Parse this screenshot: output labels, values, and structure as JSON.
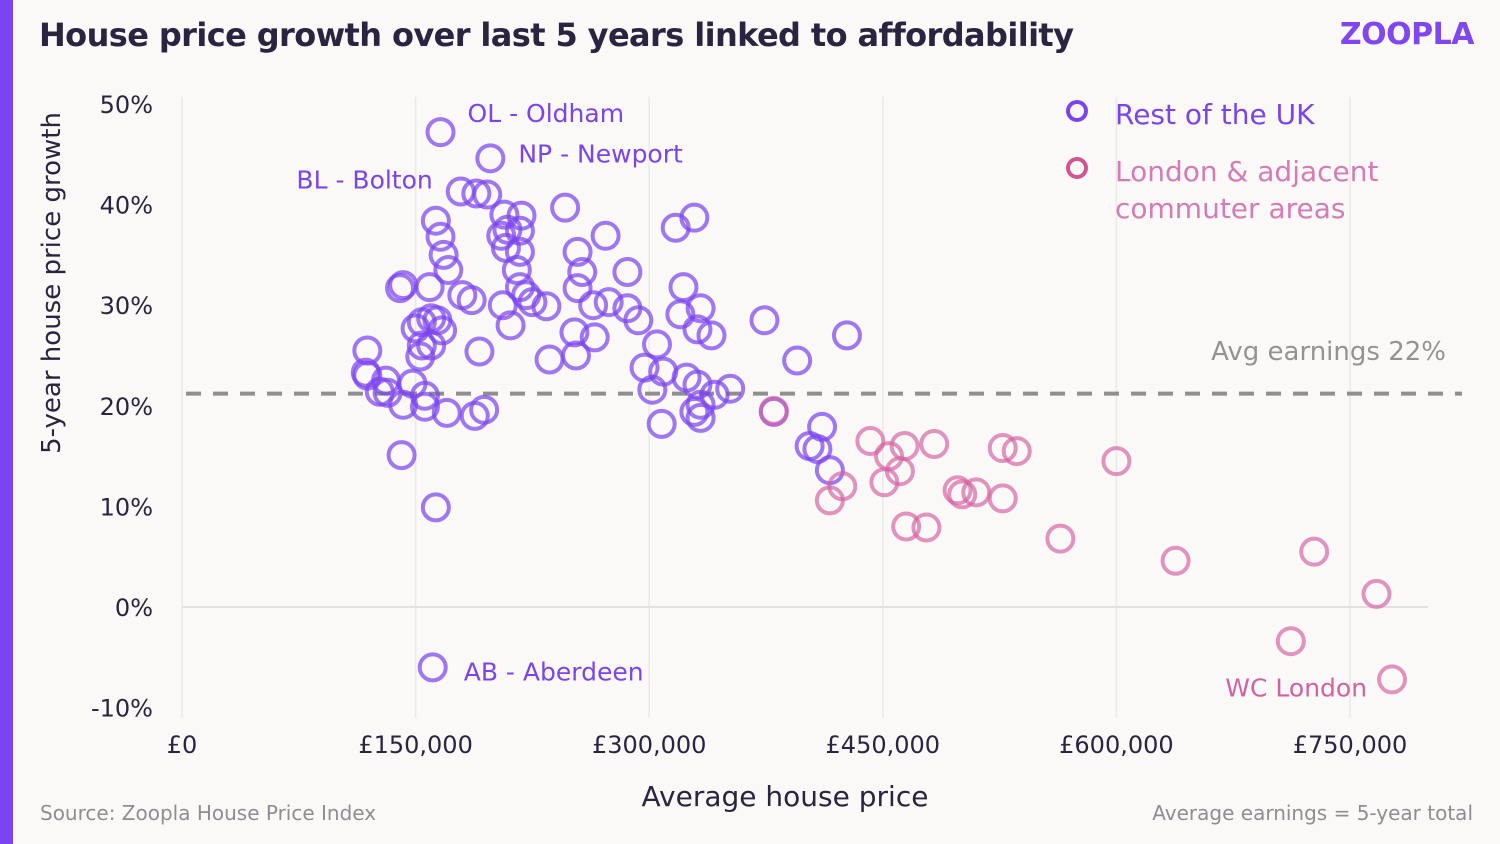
{
  "header": {
    "title": "House price growth over last 5 years linked to affordability",
    "logo": "zoopla"
  },
  "colors": {
    "brand": "#7b44f0",
    "rest_of_uk": "#7b44f0",
    "london": "#d462a0",
    "avg_line": "#8f8f8f",
    "text_dark": "#2a2440",
    "text_muted": "#8f8c94"
  },
  "footer": {
    "source": "Source: Zoopla House Price Index",
    "note": "Average earnings = 5-year total"
  },
  "chart_data": {
    "type": "scatter",
    "title": "House price growth over last 5 years linked to affordability",
    "xlabel": "Average house price",
    "ylabel": "5-year house price growth",
    "xlim": [
      0,
      800000
    ],
    "ylim": [
      -10,
      50
    ],
    "x_ticks": [
      0,
      150000,
      300000,
      450000,
      600000,
      750000
    ],
    "x_tick_labels": [
      "£0",
      "£150,000",
      "£300,000",
      "£450,000",
      "£600,000",
      "£750,000"
    ],
    "y_ticks": [
      -10,
      0,
      10,
      20,
      30,
      40,
      50
    ],
    "y_tick_labels": [
      "-10%",
      "0%",
      "10%",
      "20%",
      "30%",
      "40%",
      "50%"
    ],
    "grid": "vertical lines at x ticks, horizontal line at 0%",
    "legend_position": "top-right",
    "reference_line": {
      "label": "Avg earnings 22%",
      "value": 22,
      "style": "dashed"
    },
    "series": [
      {
        "name": "Rest of the UK",
        "legend_label": "Rest of the UK",
        "color": "#7b44f0",
        "points": [
          [
            166000,
            47.2
          ],
          [
            198000,
            44.6
          ],
          [
            179000,
            41.3
          ],
          [
            189000,
            41.1
          ],
          [
            196000,
            41.0
          ],
          [
            163000,
            38.4
          ],
          [
            246000,
            39.7
          ],
          [
            207000,
            39.0
          ],
          [
            218000,
            38.9
          ],
          [
            209000,
            37.5
          ],
          [
            205000,
            36.9
          ],
          [
            217000,
            37.4
          ],
          [
            208000,
            35.7
          ],
          [
            217000,
            35.3
          ],
          [
            166000,
            36.8
          ],
          [
            168000,
            35.0
          ],
          [
            171000,
            33.5
          ],
          [
            215000,
            33.5
          ],
          [
            217000,
            31.8
          ],
          [
            221000,
            31.0
          ],
          [
            225000,
            30.3
          ],
          [
            234000,
            29.9
          ],
          [
            254000,
            35.3
          ],
          [
            257000,
            33.3
          ],
          [
            272000,
            36.9
          ],
          [
            286000,
            33.3
          ],
          [
            317000,
            37.7
          ],
          [
            329000,
            38.7
          ],
          [
            140000,
            31.7
          ],
          [
            142000,
            32.0
          ],
          [
            159000,
            31.8
          ],
          [
            180000,
            31.0
          ],
          [
            186000,
            30.5
          ],
          [
            160000,
            28.7
          ],
          [
            154000,
            28.3
          ],
          [
            164000,
            28.5
          ],
          [
            167000,
            27.5
          ],
          [
            150000,
            27.7
          ],
          [
            154000,
            26.0
          ],
          [
            160000,
            26.0
          ],
          [
            153000,
            24.9
          ],
          [
            119000,
            25.5
          ],
          [
            191000,
            25.4
          ],
          [
            206000,
            30.0
          ],
          [
            211000,
            28.0
          ],
          [
            254000,
            31.7
          ],
          [
            264000,
            30.0
          ],
          [
            274000,
            30.3
          ],
          [
            286000,
            29.7
          ],
          [
            293000,
            28.5
          ],
          [
            305000,
            26.1
          ],
          [
            322000,
            31.8
          ],
          [
            333000,
            29.7
          ],
          [
            320000,
            29.1
          ],
          [
            331000,
            27.6
          ],
          [
            340000,
            27.0
          ],
          [
            252000,
            27.3
          ],
          [
            253000,
            25.0
          ],
          [
            265000,
            26.8
          ],
          [
            236000,
            24.6
          ],
          [
            119000,
            23.0
          ],
          [
            118000,
            23.3
          ],
          [
            131000,
            22.5
          ],
          [
            127000,
            21.4
          ],
          [
            132000,
            21.3
          ],
          [
            142000,
            20.1
          ],
          [
            148000,
            22.2
          ],
          [
            156000,
            21.0
          ],
          [
            156000,
            19.9
          ],
          [
            170000,
            19.3
          ],
          [
            188000,
            19.0
          ],
          [
            194000,
            19.6
          ],
          [
            141000,
            15.1
          ],
          [
            163000,
            9.9
          ],
          [
            297000,
            23.8
          ],
          [
            309000,
            23.4
          ],
          [
            302000,
            21.6
          ],
          [
            324000,
            22.8
          ],
          [
            331000,
            22.1
          ],
          [
            333000,
            20.1
          ],
          [
            342000,
            21.1
          ],
          [
            352000,
            21.7
          ],
          [
            308000,
            18.2
          ],
          [
            329000,
            19.4
          ],
          [
            333000,
            18.8
          ],
          [
            374000,
            28.5
          ],
          [
            395000,
            24.5
          ],
          [
            427000,
            27.0
          ],
          [
            380000,
            19.4
          ],
          [
            411000,
            17.9
          ],
          [
            403000,
            16.0
          ],
          [
            408000,
            15.7
          ],
          [
            416000,
            13.6
          ],
          [
            161000,
            -6.0
          ]
        ]
      },
      {
        "name": "London & adjacent commuter areas",
        "legend_label": "London & adjacent commuter areas",
        "color": "#d462a0",
        "points": [
          [
            380000,
            19.5
          ],
          [
            442000,
            16.5
          ],
          [
            454000,
            15.0
          ],
          [
            464000,
            16.0
          ],
          [
            483000,
            16.2
          ],
          [
            461000,
            13.5
          ],
          [
            451000,
            12.4
          ],
          [
            424000,
            12.0
          ],
          [
            416000,
            10.6
          ],
          [
            465000,
            8.0
          ],
          [
            478000,
            7.9
          ],
          [
            527000,
            15.8
          ],
          [
            536000,
            15.5
          ],
          [
            498000,
            11.6
          ],
          [
            501000,
            11.2
          ],
          [
            510000,
            11.4
          ],
          [
            527000,
            10.8
          ],
          [
            600000,
            14.5
          ],
          [
            564000,
            6.8
          ],
          [
            638000,
            4.6
          ],
          [
            727000,
            5.5
          ],
          [
            767000,
            1.3
          ],
          [
            712000,
            -3.4
          ],
          [
            777000,
            -7.2
          ]
        ]
      }
    ],
    "annotations": [
      {
        "text": "OL - Oldham",
        "x": 166000,
        "y": 47.2,
        "series": "Rest of the UK"
      },
      {
        "text": "NP - Newport",
        "x": 198000,
        "y": 44.6,
        "series": "Rest of the UK"
      },
      {
        "text": "BL - Bolton",
        "x": 179000,
        "y": 41.3,
        "series": "Rest of the UK"
      },
      {
        "text": "AB - Aberdeen",
        "x": 161000,
        "y": -6.0,
        "series": "Rest of the UK"
      },
      {
        "text": "WC London",
        "x": 777000,
        "y": -7.2,
        "series": "London & adjacent commuter areas"
      }
    ]
  }
}
